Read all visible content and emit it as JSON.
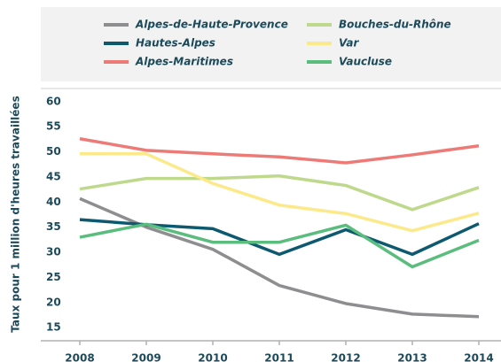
{
  "chart_data": {
    "type": "line",
    "y_label": "Taux pour 1 million d'heures travaillées",
    "categories": [
      "2008",
      "2009",
      "2010",
      "2011",
      "2012",
      "2013",
      "2014"
    ],
    "series": [
      {
        "name": "Alpes-de-Haute-Provence",
        "color": "#8e8e90",
        "values": [
          40.7,
          35,
          30.6,
          23.4,
          19.8,
          17.7,
          17.2
        ]
      },
      {
        "name": "Hautes-Alpes",
        "color": "#0d5a70",
        "values": [
          36.5,
          35.5,
          34.7,
          29.6,
          34.5,
          29.6,
          35.7
        ]
      },
      {
        "name": "Alpes-Maritimes",
        "color": "#ec7b78",
        "values": [
          52.6,
          50.3,
          49.6,
          49,
          47.8,
          49.4,
          51.2
        ]
      },
      {
        "name": "Bouches-du-Rhône",
        "color": "#bfd98c",
        "values": [
          42.6,
          44.7,
          44.7,
          45.2,
          43.3,
          38.5,
          42.9
        ]
      },
      {
        "name": "Var",
        "color": "#fbe98a",
        "values": [
          49.6,
          49.6,
          43.7,
          39.4,
          37.7,
          34.3,
          37.8
        ]
      },
      {
        "name": "Vaucluse",
        "color": "#5bbd7d",
        "values": [
          33,
          35.6,
          32,
          32,
          35.4,
          27.1,
          32.4
        ]
      }
    ],
    "ylim": [
      12.4,
      62.6
    ],
    "yticks": [
      15,
      20,
      25,
      30,
      35,
      40,
      45,
      50,
      55,
      60
    ]
  }
}
